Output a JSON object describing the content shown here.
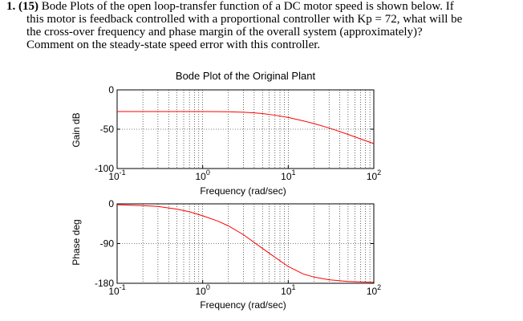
{
  "question": {
    "number": "1.",
    "points": "(15)",
    "line1": "Bode Plots of the open loop-transfer function of a DC motor speed is shown below. If",
    "line2": "this motor is feedback controlled with a proportional controller with Kp = 72, what will be",
    "line3": "the cross-over frequency and phase margin of the overall system (approximately)?",
    "line4": "Comment on the steady-state speed error with this controller."
  },
  "chart_data": [
    {
      "type": "line",
      "title": "Bode Plot of the Original Plant",
      "xlabel": "Frequency (rad/sec)",
      "ylabel": "Gain dB",
      "xscale": "log",
      "xlim": [
        0.1,
        100
      ],
      "ylim": [
        -100,
        0
      ],
      "grid": true,
      "x_tick_labels": [
        {
          "base": "10",
          "exp": "-1"
        },
        {
          "base": "10",
          "exp": "0"
        },
        {
          "base": "10",
          "exp": "1"
        },
        {
          "base": "10",
          "exp": "2"
        }
      ],
      "y_tick_labels": [
        "0",
        "-50",
        "-100"
      ],
      "line_color": "#ff0000",
      "series": [
        {
          "x": [
            0.1,
            0.2,
            0.5,
            1,
            1.5,
            2,
            3,
            4,
            5,
            7,
            10,
            15,
            20,
            30,
            50,
            100
          ],
          "values": [
            -27.6,
            -27.6,
            -27.6,
            -27.6,
            -27.7,
            -27.8,
            -28.4,
            -29.2,
            -30.1,
            -32.2,
            -35.1,
            -39.4,
            -42.9,
            -48.4,
            -56.6,
            -68.4
          ]
        }
      ]
    },
    {
      "type": "line",
      "title": "",
      "xlabel": "Frequency (rad/sec)",
      "ylabel": "Phase deg",
      "xscale": "log",
      "xlim": [
        0.1,
        100
      ],
      "ylim": [
        -180,
        0
      ],
      "grid": true,
      "x_tick_labels": [
        {
          "base": "10",
          "exp": "-1"
        },
        {
          "base": "10",
          "exp": "0"
        },
        {
          "base": "10",
          "exp": "1"
        },
        {
          "base": "10",
          "exp": "2"
        }
      ],
      "y_tick_labels": [
        "0",
        "-90",
        "-180"
      ],
      "line_color": "#ff0000",
      "series": [
        {
          "x": [
            0.1,
            0.2,
            0.3,
            0.5,
            0.7,
            1,
            1.5,
            2,
            3,
            5,
            7,
            10,
            15,
            20,
            30,
            50,
            100
          ],
          "values": [
            -2,
            -4,
            -6,
            -12,
            -18,
            -27,
            -39,
            -50,
            -70,
            -101,
            -121,
            -142,
            -159,
            -166,
            -172,
            -176,
            -178
          ]
        }
      ]
    }
  ]
}
